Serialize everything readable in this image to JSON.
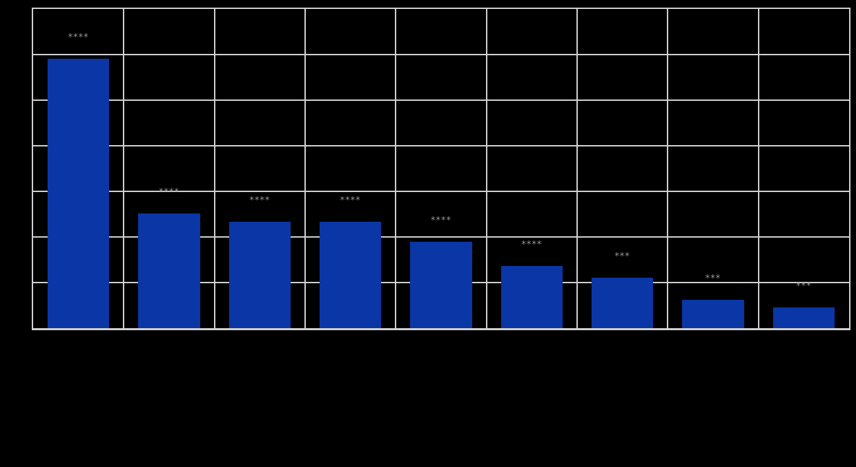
{
  "figure": {
    "background": "#000000"
  },
  "chart_data": {
    "type": "bar",
    "title": "",
    "xlabel": "",
    "ylabel": "",
    "categories": [
      "",
      "",
      "",
      "",
      "",
      "",
      "",
      "",
      ""
    ],
    "values": [
      5.91,
      2.52,
      2.33,
      2.33,
      1.89,
      1.36,
      1.11,
      0.62,
      0.45
    ],
    "bar_annotations": [
      "****",
      "****",
      "****",
      "****",
      "****",
      "****",
      "***",
      "***",
      "***"
    ],
    "ylim": [
      0,
      7
    ],
    "y_grid_step": 1,
    "grid": true,
    "legend_position": "none",
    "axis_tick_labels_visible": false,
    "bar_width_fraction": 0.68,
    "colors": {
      "bar": "#0a37a5",
      "grid": "#d0d0d0",
      "background": "#000000",
      "annotation": "#979797"
    }
  }
}
